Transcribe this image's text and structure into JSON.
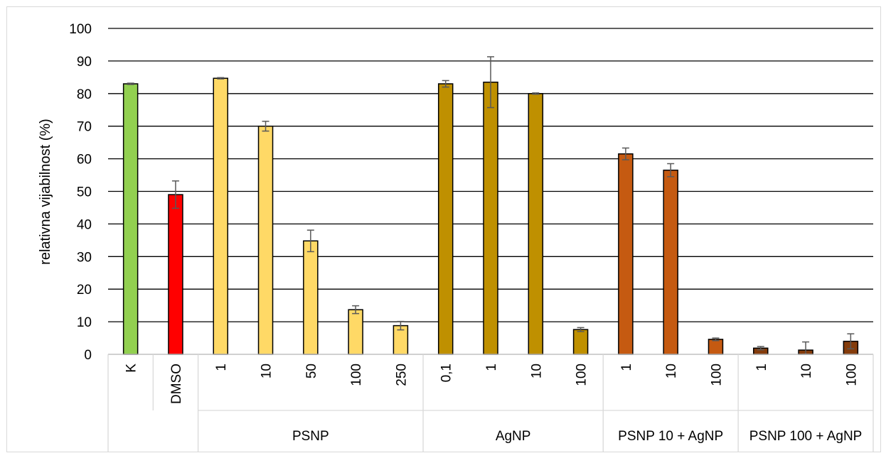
{
  "chart_data": {
    "type": "bar",
    "ylabel": "relativna vijabilnost (%)",
    "ylim": [
      0,
      100
    ],
    "yticks": [
      "0",
      "10",
      "20",
      "30",
      "40",
      "50",
      "60",
      "70",
      "80",
      "90",
      "100"
    ],
    "grid": true,
    "groups": [
      {
        "label": "",
        "color": "#92d050",
        "categories": [
          "K"
        ],
        "values": [
          83
        ],
        "errors": [
          0.2
        ]
      },
      {
        "label": "",
        "color": "#ff0000",
        "categories": [
          "DMSO"
        ],
        "values": [
          49
        ],
        "errors": [
          4.2
        ]
      },
      {
        "label": "PSNP",
        "color": "#ffd966",
        "categories": [
          "1",
          "10",
          "50",
          "100",
          "250"
        ],
        "values": [
          84.7,
          70,
          34.8,
          13.7,
          8.8
        ],
        "errors": [
          0.2,
          1.5,
          3.3,
          1.2,
          1.3
        ]
      },
      {
        "label": "AgNP",
        "color": "#bf9000",
        "categories": [
          "0,1",
          "1",
          "10",
          "100"
        ],
        "values": [
          83,
          83.5,
          80,
          7.6
        ],
        "errors": [
          1.0,
          7.8,
          0.2,
          0.6
        ]
      },
      {
        "label": "PSNP 10 + AgNP",
        "color": "#c55a11",
        "categories": [
          "1",
          "10",
          "100"
        ],
        "values": [
          61.5,
          56.5,
          4.6
        ],
        "errors": [
          1.8,
          2.0,
          0.4
        ]
      },
      {
        "label": "PSNP 100 + AgNP",
        "color": "#843c0c",
        "categories": [
          "1",
          "10",
          "100"
        ],
        "values": [
          1.9,
          1.3,
          4.0
        ],
        "errors": [
          0.5,
          2.5,
          2.3
        ]
      }
    ]
  }
}
